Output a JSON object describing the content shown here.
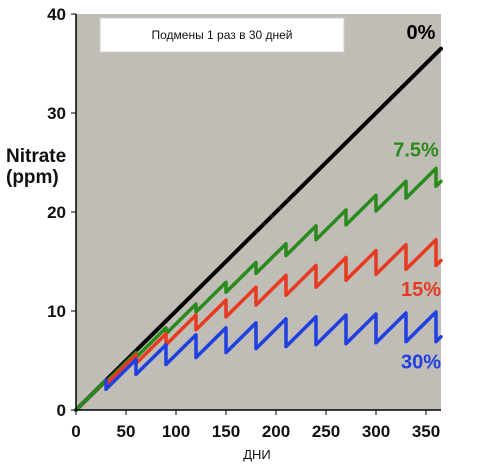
{
  "chart_data": {
    "type": "line",
    "title": "",
    "xlabel": "ДНИ",
    "ylabel_line1": "Nitrate",
    "ylabel_line2": "(ppm)",
    "xlim": [
      0,
      365
    ],
    "ylim": [
      0,
      40
    ],
    "xticks": [
      0,
      50,
      100,
      150,
      200,
      250,
      300,
      350
    ],
    "yticks": [
      0,
      10,
      20,
      30,
      40
    ],
    "grid": false,
    "plot_background": "#c0bdb6",
    "annotation": "Подмены 1 раз в 30 дней",
    "series": [
      {
        "name": "0%",
        "color": "#000000",
        "x": [
          0,
          365
        ],
        "y": [
          0,
          36.5
        ]
      },
      {
        "name": "7.5%",
        "color": "#2a8a1c",
        "x": [
          0,
          30,
          30,
          60,
          60,
          90,
          90,
          120,
          120,
          150,
          150,
          180,
          180,
          210,
          210,
          240,
          240,
          270,
          270,
          300,
          300,
          330,
          330,
          360,
          360,
          365
        ],
        "y": [
          0,
          3.0,
          2.8,
          5.8,
          5.3,
          8.3,
          7.7,
          10.7,
          9.9,
          12.9,
          11.9,
          14.9,
          13.8,
          16.8,
          15.6,
          18.6,
          17.2,
          20.2,
          18.7,
          21.7,
          20.1,
          23.1,
          21.4,
          24.4,
          22.6,
          23.1
        ]
      },
      {
        "name": "15%",
        "color": "#e83a20",
        "x": [
          30,
          30,
          60,
          60,
          90,
          90,
          120,
          120,
          150,
          150,
          180,
          180,
          210,
          210,
          240,
          240,
          270,
          270,
          300,
          300,
          330,
          330,
          360,
          360,
          365
        ],
        "y": [
          3.0,
          2.6,
          5.6,
          4.7,
          7.7,
          6.6,
          9.6,
          8.1,
          11.1,
          9.4,
          12.4,
          10.6,
          13.6,
          11.6,
          14.6,
          12.4,
          15.4,
          13.1,
          16.1,
          13.7,
          16.7,
          14.2,
          17.2,
          14.6,
          15.1
        ]
      },
      {
        "name": "30%",
        "color": "#1f3fe0",
        "x": [
          30,
          30,
          60,
          60,
          90,
          90,
          120,
          120,
          150,
          150,
          180,
          180,
          210,
          210,
          240,
          240,
          270,
          270,
          300,
          300,
          330,
          330,
          360,
          360,
          365
        ],
        "y": [
          3.0,
          2.1,
          5.1,
          3.6,
          6.6,
          4.6,
          7.6,
          5.3,
          8.3,
          5.8,
          8.8,
          6.2,
          9.2,
          6.4,
          9.4,
          6.6,
          9.6,
          6.7,
          9.7,
          6.8,
          9.8,
          6.9,
          9.9,
          6.9,
          7.4
        ]
      }
    ],
    "series_labels": [
      {
        "series": "0%",
        "x": 345,
        "y": 37.5
      },
      {
        "series": "7.5%",
        "x": 340,
        "y": 25.6
      },
      {
        "series": "15%",
        "x": 345,
        "y": 11.5
      },
      {
        "series": "30%",
        "x": 345,
        "y": 4.2
      }
    ]
  }
}
